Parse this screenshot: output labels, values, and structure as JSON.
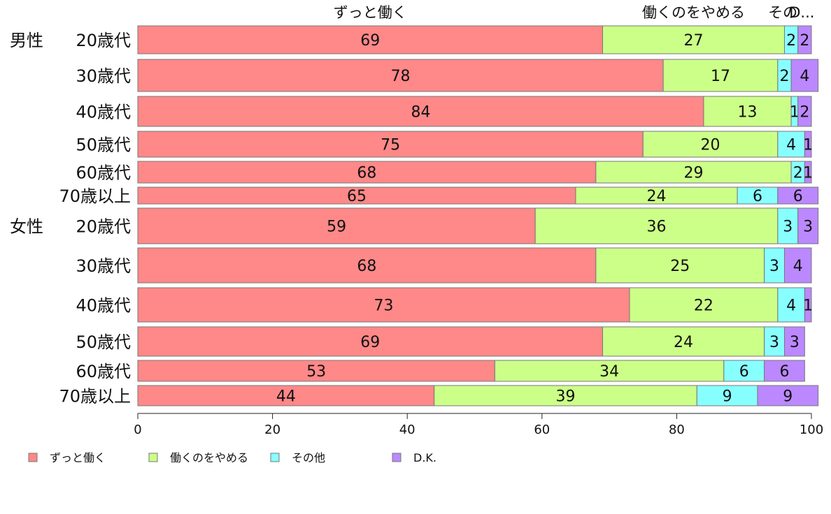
{
  "chart_data": {
    "type": "bar",
    "orientation": "horizontal",
    "stacked": true,
    "title": "",
    "xlabel": "",
    "ylabel": "",
    "xlim": [
      0,
      100
    ],
    "xticks": [
      0,
      20,
      40,
      60,
      80,
      100
    ],
    "grid": false,
    "legend_position": "bottom-left",
    "groups": [
      {
        "label": "男性",
        "first_row": 0
      },
      {
        "label": "女性",
        "first_row": 6
      }
    ],
    "categories": [
      "20歳代",
      "30歳代",
      "40歳代",
      "50歳代",
      "60歳代",
      "70歳以上",
      "20歳代",
      "30歳代",
      "40歳代",
      "50歳代",
      "60歳代",
      "70歳以上"
    ],
    "series": [
      {
        "name": "ずっと働く",
        "color": "#ff8888",
        "values": [
          69,
          78,
          84,
          75,
          68,
          65,
          59,
          68,
          73,
          69,
          53,
          44
        ]
      },
      {
        "name": "働くのをやめる",
        "color": "#ccff88",
        "values": [
          27,
          17,
          13,
          20,
          29,
          24,
          36,
          25,
          22,
          24,
          34,
          39
        ]
      },
      {
        "name": "その他",
        "color": "#88ffff",
        "values": [
          2,
          2,
          1,
          4,
          2,
          6,
          3,
          3,
          4,
          3,
          6,
          9
        ]
      },
      {
        "name": "D.K.",
        "color": "#bb88ff",
        "values": [
          2,
          4,
          2,
          1,
          1,
          6,
          3,
          4,
          1,
          3,
          6,
          9
        ]
      }
    ],
    "top_labels": [
      "ずっと働く",
      "働くのをやめる",
      "その",
      "D..."
    ]
  }
}
